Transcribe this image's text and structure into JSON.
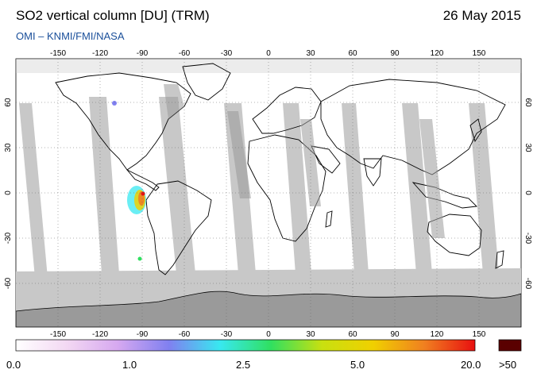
{
  "header": {
    "title": "SO2 vertical column [DU] (TRM)",
    "date": "26 May 2015",
    "source": "OMI  –  KNMI/FMI/NASA"
  },
  "map": {
    "lon_ticks": [
      "-150",
      "-120",
      "-90",
      "-60",
      "-30",
      "0",
      "30",
      "60",
      "90",
      "120",
      "150"
    ],
    "lat_ticks_left": [
      "60",
      "30",
      "0",
      "-30",
      "-60"
    ],
    "lat_ticks_right": [
      "60",
      "30",
      "0",
      "-30",
      "-60"
    ],
    "colors": {
      "no_data_gray": "#c8c8c8",
      "land_gray": "#9a9a9a",
      "polar_gray": "#b4b4b4",
      "coast": "#000000"
    }
  },
  "colorbar": {
    "labels": [
      "0.0",
      "1.0",
      "2.5",
      "5.0",
      "20.0"
    ],
    "overflow_label": ">50",
    "stops": [
      "#ffffff",
      "#f3d8f3",
      "#d6a8f0",
      "#8080f0",
      "#38e8f0",
      "#30e060",
      "#c8e010",
      "#f0d000",
      "#f08020",
      "#e81010"
    ],
    "overflow_color": "#5a0000"
  }
}
